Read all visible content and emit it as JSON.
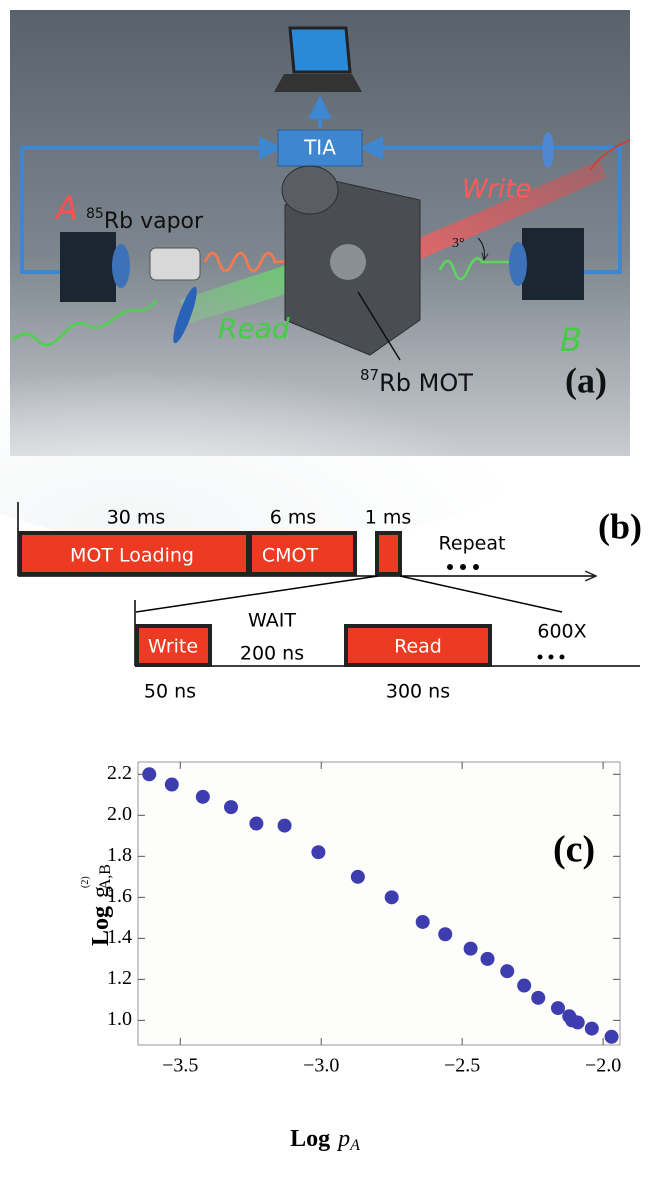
{
  "panel_a": {
    "tia": "TIA",
    "detector_a": "A",
    "vapor_label": {
      "mass": "85",
      "text": "Rb vapor"
    },
    "write": "Write",
    "angle": "3°",
    "read": "Read",
    "detector_b": "B",
    "mot_label": {
      "mass": "87",
      "text": "Rb MOT"
    },
    "panel_label": "(a)"
  },
  "panel_b": {
    "loading_time": "30 ms",
    "cmot_time": "6 ms",
    "cycle_time": "1 ms",
    "panel_label": "(b)",
    "loading": "MOT Loading",
    "cmot": "CMOT",
    "repeat": "Repeat",
    "write": "Write",
    "wait": "WAIT",
    "wait_time": "200 ns",
    "read": "Read",
    "repetitions": "600X",
    "write_time": "50 ns",
    "read_time": "300 ns"
  },
  "chart_data": {
    "type": "scatter",
    "title": "(c)",
    "x_label": {
      "text": "Log",
      "var": "p",
      "sub": "A"
    },
    "y_label": {
      "text": "Log",
      "var": "g",
      "sup": "(2)",
      "sub": "A,B"
    },
    "color": "#3d3db0",
    "x": [
      -3.61,
      -3.53,
      -3.42,
      -3.32,
      -3.23,
      -3.13,
      -3.01,
      -2.87,
      -2.75,
      -2.64,
      -2.56,
      -2.47,
      -2.41,
      -2.34,
      -2.28,
      -2.23,
      -2.16,
      -2.12,
      -2.11,
      -2.09,
      -2.04,
      -1.97
    ],
    "values": [
      2.2,
      2.15,
      2.09,
      2.04,
      1.96,
      1.95,
      1.82,
      1.7,
      1.6,
      1.48,
      1.42,
      1.35,
      1.3,
      1.24,
      1.17,
      1.11,
      1.06,
      1.02,
      1.0,
      0.99,
      0.96,
      0.92
    ],
    "xlim": [
      -3.65,
      -1.94
    ],
    "ylim": [
      0.88,
      2.26
    ],
    "xticks": [
      {
        "value": -3.5,
        "label": "−3.5"
      },
      {
        "value": -3.0,
        "label": "−3.0"
      },
      {
        "value": -2.5,
        "label": "−2.5"
      },
      {
        "value": -2.0,
        "label": "−2.0"
      }
    ],
    "yticks": [
      {
        "value": 1.0,
        "label": "1.0"
      },
      1.2,
      1.4,
      1.6,
      1.8,
      {
        "value": 2.0,
        "label": "2.0"
      },
      2.2
    ]
  }
}
